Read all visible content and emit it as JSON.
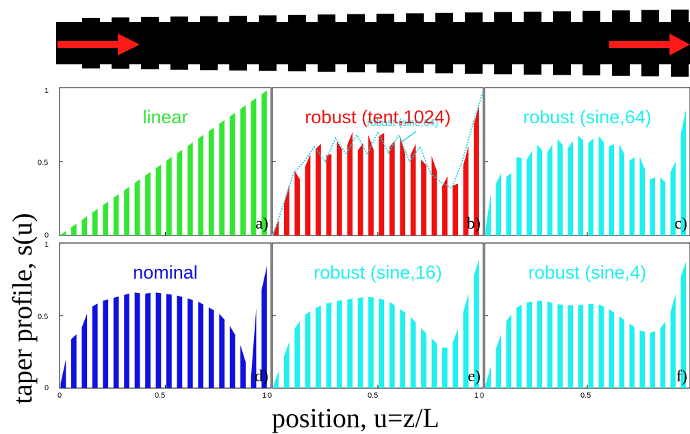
{
  "figure": {
    "ylabel": "taper profile, s(u)",
    "xlabel": "position, u=z/L",
    "ylim": [
      0,
      1
    ],
    "xlim": [
      0,
      1
    ],
    "yticks": [
      "0",
      "0.5",
      "1"
    ],
    "xticks": [
      "0",
      "0.5",
      "1"
    ],
    "x_tick_values": [
      0,
      0.5,
      1
    ],
    "y_tick_values": [
      0,
      0.5,
      1
    ]
  },
  "chart_data": [
    {
      "type": "bar",
      "panel": "a)",
      "title": "linear",
      "title_color": "#33e633",
      "fill": "#33e633",
      "description": "",
      "samples": [
        [
          0,
          0
        ],
        [
          1,
          1
        ]
      ]
    },
    {
      "type": "bar",
      "panel": "b)",
      "title": "robust (tent,1024)",
      "title_color": "#ee1111",
      "fill": "#ee1111",
      "annotation": "robust (sine,64)",
      "annotation_color": "#22d3e0",
      "samples": [
        [
          0,
          0
        ],
        [
          0.04,
          0.14
        ],
        [
          0.1,
          0.45
        ],
        [
          0.13,
          0.38
        ],
        [
          0.18,
          0.55
        ],
        [
          0.23,
          0.62
        ],
        [
          0.27,
          0.5
        ],
        [
          0.3,
          0.65
        ],
        [
          0.34,
          0.56
        ],
        [
          0.38,
          0.7
        ],
        [
          0.41,
          0.55
        ],
        [
          0.45,
          0.7
        ],
        [
          0.48,
          0.58
        ],
        [
          0.52,
          0.73
        ],
        [
          0.56,
          0.58
        ],
        [
          0.6,
          0.7
        ],
        [
          0.64,
          0.5
        ],
        [
          0.68,
          0.62
        ],
        [
          0.72,
          0.45
        ],
        [
          0.76,
          0.55
        ],
        [
          0.8,
          0.32
        ],
        [
          0.83,
          0.4
        ],
        [
          0.87,
          0.3
        ],
        [
          0.92,
          0.55
        ],
        [
          0.96,
          0.78
        ],
        [
          1,
          0.98
        ]
      ],
      "overlay": [
        [
          0,
          0
        ],
        [
          0.05,
          0.2
        ],
        [
          0.1,
          0.42
        ],
        [
          0.15,
          0.5
        ],
        [
          0.2,
          0.6
        ],
        [
          0.25,
          0.5
        ],
        [
          0.3,
          0.66
        ],
        [
          0.35,
          0.55
        ],
        [
          0.4,
          0.68
        ],
        [
          0.45,
          0.55
        ],
        [
          0.5,
          0.7
        ],
        [
          0.55,
          0.56
        ],
        [
          0.6,
          0.68
        ],
        [
          0.65,
          0.5
        ],
        [
          0.7,
          0.6
        ],
        [
          0.75,
          0.42
        ],
        [
          0.8,
          0.36
        ],
        [
          0.85,
          0.32
        ],
        [
          0.9,
          0.5
        ],
        [
          0.95,
          0.75
        ],
        [
          1,
          0.98
        ]
      ]
    },
    {
      "type": "bar",
      "panel": "c)",
      "title": "robust (sine,64)",
      "title_color": "#22f0ee",
      "fill": "#22f0ee",
      "samples": [
        [
          0,
          0
        ],
        [
          0.03,
          0.28
        ],
        [
          0.08,
          0.42
        ],
        [
          0.12,
          0.38
        ],
        [
          0.16,
          0.55
        ],
        [
          0.2,
          0.5
        ],
        [
          0.25,
          0.62
        ],
        [
          0.3,
          0.55
        ],
        [
          0.35,
          0.66
        ],
        [
          0.4,
          0.58
        ],
        [
          0.45,
          0.68
        ],
        [
          0.5,
          0.62
        ],
        [
          0.55,
          0.68
        ],
        [
          0.6,
          0.6
        ],
        [
          0.65,
          0.63
        ],
        [
          0.7,
          0.5
        ],
        [
          0.75,
          0.55
        ],
        [
          0.8,
          0.38
        ],
        [
          0.85,
          0.4
        ],
        [
          0.88,
          0.36
        ],
        [
          0.93,
          0.5
        ],
        [
          0.97,
          0.8
        ],
        [
          1,
          0.95
        ]
      ]
    },
    {
      "type": "bar",
      "panel": "d)",
      "title": "nominal",
      "title_color": "#1111dd",
      "fill": "#1111dd",
      "samples": [
        [
          0,
          0
        ],
        [
          0.05,
          0.33
        ],
        [
          0.1,
          0.4
        ],
        [
          0.14,
          0.55
        ],
        [
          0.2,
          0.6
        ],
        [
          0.25,
          0.62
        ],
        [
          0.3,
          0.64
        ],
        [
          0.35,
          0.66
        ],
        [
          0.4,
          0.65
        ],
        [
          0.45,
          0.66
        ],
        [
          0.5,
          0.65
        ],
        [
          0.55,
          0.64
        ],
        [
          0.6,
          0.62
        ],
        [
          0.65,
          0.6
        ],
        [
          0.7,
          0.56
        ],
        [
          0.75,
          0.52
        ],
        [
          0.8,
          0.44
        ],
        [
          0.85,
          0.32
        ],
        [
          0.88,
          0.18
        ],
        [
          0.91,
          0.05
        ],
        [
          0.92,
          0.5
        ],
        [
          0.96,
          0.7
        ],
        [
          0.98,
          0.84
        ]
      ]
    },
    {
      "type": "bar",
      "panel": "e)",
      "title": "robust (sine,16)",
      "title_color": "#22f0ee",
      "fill": "#22f0ee",
      "samples": [
        [
          0,
          0
        ],
        [
          0.05,
          0.2
        ],
        [
          0.1,
          0.4
        ],
        [
          0.15,
          0.5
        ],
        [
          0.2,
          0.55
        ],
        [
          0.25,
          0.58
        ],
        [
          0.3,
          0.6
        ],
        [
          0.35,
          0.61
        ],
        [
          0.4,
          0.62
        ],
        [
          0.45,
          0.63
        ],
        [
          0.5,
          0.62
        ],
        [
          0.55,
          0.6
        ],
        [
          0.6,
          0.55
        ],
        [
          0.65,
          0.5
        ],
        [
          0.7,
          0.42
        ],
        [
          0.75,
          0.35
        ],
        [
          0.8,
          0.28
        ],
        [
          0.83,
          0.28
        ],
        [
          0.86,
          0.32
        ],
        [
          0.9,
          0.5
        ],
        [
          0.95,
          0.75
        ],
        [
          1,
          0.98
        ]
      ]
    },
    {
      "type": "bar",
      "panel": "f)",
      "title": "robust (sine,4)",
      "title_color": "#22f0ee",
      "fill": "#22f0ee",
      "samples": [
        [
          0,
          0
        ],
        [
          0.05,
          0.25
        ],
        [
          0.1,
          0.45
        ],
        [
          0.15,
          0.55
        ],
        [
          0.2,
          0.59
        ],
        [
          0.25,
          0.6
        ],
        [
          0.3,
          0.6
        ],
        [
          0.35,
          0.58
        ],
        [
          0.4,
          0.57
        ],
        [
          0.45,
          0.57
        ],
        [
          0.5,
          0.58
        ],
        [
          0.55,
          0.58
        ],
        [
          0.6,
          0.55
        ],
        [
          0.65,
          0.5
        ],
        [
          0.7,
          0.45
        ],
        [
          0.75,
          0.4
        ],
        [
          0.8,
          0.38
        ],
        [
          0.85,
          0.4
        ],
        [
          0.9,
          0.5
        ],
        [
          0.95,
          0.75
        ],
        [
          1,
          0.95
        ]
      ]
    }
  ]
}
